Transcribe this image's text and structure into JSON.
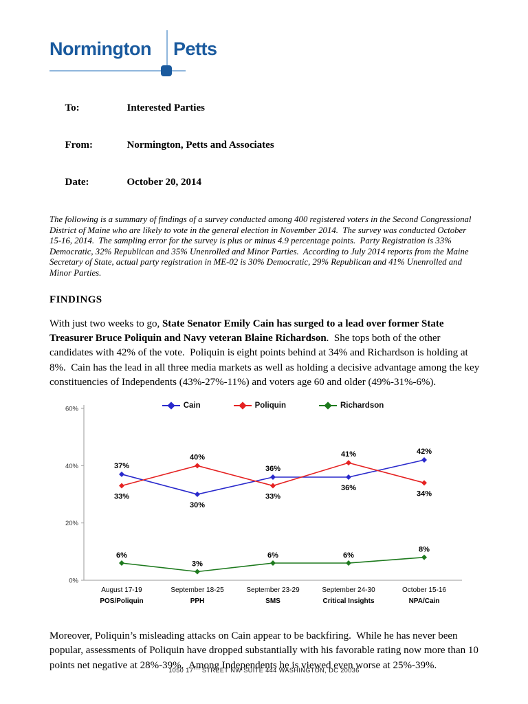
{
  "logo": {
    "word1": "Normington",
    "word2": "Petts",
    "text_color": "#1A5A9E",
    "line_color": "#8FB6DC"
  },
  "memo": {
    "rows": [
      {
        "label": "To:",
        "value": "Interested Parties"
      },
      {
        "label": "From:",
        "value": "Normington, Petts and Associates"
      },
      {
        "label": "Date:",
        "value": "October 20, 2014"
      }
    ]
  },
  "intro": "The following is a summary of findings of a survey conducted among 400 registered voters in the Second Congressional District of Maine who are likely to vote in the general election in November 2014.  The survey was conducted October 15-16, 2014.  The sampling error for the survey is plus or minus 4.9 percentage points.  Party Registration is 33% Democratic, 32% Republican and 35% Unenrolled and Minor Parties.  According to July 2014 reports from the Maine Secretary of State, actual party registration in ME-02 is 30% Democratic, 29% Republican and 41% Unenrolled and Minor Parties.",
  "findings_heading": "FINDINGS",
  "para1": {
    "part1": "With just two weeks to go, ",
    "bold": "State Senator Emily Cain has surged to a lead over former State Treasurer Bruce Poliquin and Navy veteran Blaine Richardson",
    "part2": ".  She tops both of the other candidates with 42% of the vote.  Poliquin is eight points behind at 34% and Richardson is holding at 8%.  Cain has the lead in all three media markets as well as holding a decisive advantage among the key constituencies of Independents (43%-27%-11%) and voters age 60 and older (49%-31%-6%)."
  },
  "chart_data": {
    "type": "line",
    "title": "",
    "xlabel": "",
    "ylabel": "",
    "ylim": [
      0,
      60
    ],
    "yticks": [
      "0%",
      "20%",
      "40%",
      "60%"
    ],
    "grid": false,
    "legend_position": "top",
    "categories": [
      {
        "line1": "August 17-19",
        "line2": "POS/Poliquin"
      },
      {
        "line1": "September 18-25",
        "line2": "PPH"
      },
      {
        "line1": "September 23-29",
        "line2": "SMS"
      },
      {
        "line1": "September 24-30",
        "line2": "Critical Insights"
      },
      {
        "line1": "October 15-16",
        "line2": "NPA/Cain"
      }
    ],
    "series": [
      {
        "name": "Cain",
        "color": "#2929CC",
        "values": [
          37,
          30,
          36,
          36,
          42
        ]
      },
      {
        "name": "Poliquin",
        "color": "#E52222",
        "values": [
          33,
          40,
          33,
          41,
          34
        ]
      },
      {
        "name": "Richardson",
        "color": "#1E7A1E",
        "values": [
          6,
          3,
          6,
          6,
          8
        ]
      }
    ]
  },
  "para2": "Moreover, Poliquin’s misleading attacks on Cain appear to be backfiring.  While he has never been popular, assessments of Poliquin have dropped substantially with his favorable rating now more than 10 points net negative at 28%-39%.  Among Independents he is viewed even worse at 25%-39%.",
  "footer": {
    "part1": "1050 17",
    "sup": "TH",
    "part2": " STREET NW SUITE 444 WASHINGTON, DC 20036"
  }
}
